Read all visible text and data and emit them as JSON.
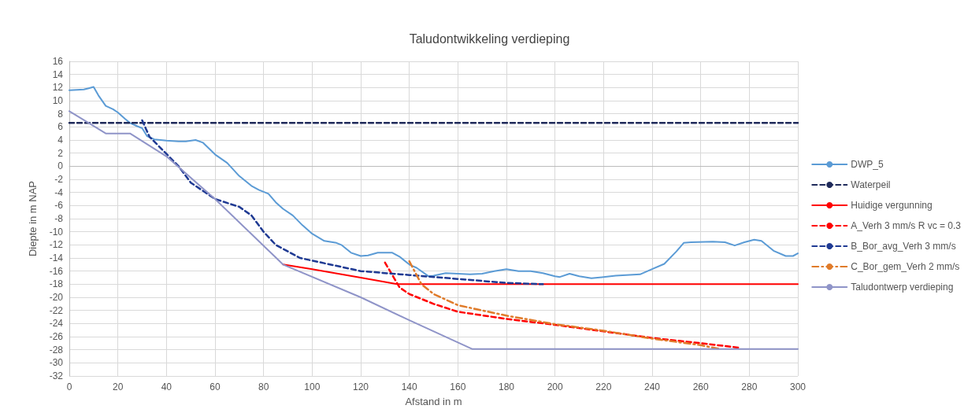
{
  "chart_data": {
    "type": "line",
    "title": "Taludontwikkeling verdieping",
    "xlabel": "Afstand in m",
    "ylabel": "Diepte in m NAP",
    "xlim": [
      0,
      300
    ],
    "xticks": [
      0,
      20,
      40,
      60,
      80,
      100,
      120,
      140,
      160,
      180,
      200,
      220,
      240,
      260,
      280,
      300
    ],
    "ylim": [
      -32,
      16
    ],
    "yticks": [
      -32,
      -30,
      -28,
      -26,
      -24,
      -22,
      -20,
      -18,
      -16,
      -14,
      -12,
      -10,
      -8,
      -6,
      -4,
      -2,
      0,
      2,
      4,
      6,
      8,
      10,
      12,
      14,
      16
    ],
    "grid": true,
    "legend": "right",
    "marker": "none",
    "series": [
      {
        "name": "DWP_5",
        "color": "#5b9bd5",
        "line_style": "solid",
        "x": [
          0,
          6,
          8,
          10,
          12,
          15,
          18,
          20,
          23,
          25,
          28,
          30,
          32,
          35,
          40,
          45,
          48,
          52,
          55,
          60,
          65,
          70,
          75,
          78,
          82,
          85,
          88,
          92,
          96,
          100,
          105,
          110,
          112,
          116,
          120,
          123,
          127,
          130,
          133,
          136,
          140,
          143,
          148,
          150,
          155,
          160,
          165,
          170,
          175,
          180,
          185,
          190,
          195,
          200,
          202,
          206,
          210,
          215,
          220,
          225,
          235,
          240,
          245,
          250,
          253,
          256,
          265,
          270,
          274,
          278,
          282,
          285,
          290,
          295,
          298,
          300
        ],
        "values": [
          11.6,
          11.7,
          11.9,
          12.1,
          10.8,
          9.2,
          8.7,
          8.2,
          7.2,
          6.6,
          6.1,
          5.8,
          4.6,
          4.1,
          3.9,
          3.8,
          3.8,
          4,
          3.6,
          1.8,
          0.5,
          -1.5,
          -3,
          -3.6,
          -4.2,
          -5.5,
          -6.5,
          -7.5,
          -9,
          -10.3,
          -11.4,
          -11.7,
          -12,
          -13.2,
          -13.7,
          -13.6,
          -13.2,
          -13.2,
          -13.2,
          -13.8,
          -15,
          -15.5,
          -16.8,
          -16.7,
          -16.3,
          -16.4,
          -16.5,
          -16.4,
          -16,
          -15.7,
          -16,
          -16,
          -16.3,
          -16.8,
          -16.9,
          -16.4,
          -16.8,
          -17.1,
          -16.9,
          -16.7,
          -16.5,
          -15.7,
          -14.9,
          -13,
          -11.7,
          -11.6,
          -11.5,
          -11.6,
          -12.1,
          -11.6,
          -11.2,
          -11.4,
          -12.9,
          -13.7,
          -13.7,
          -13.3
        ]
      },
      {
        "name": "Waterpeil",
        "color": "#1f2a5a",
        "line_style": "dashed",
        "x": [
          0,
          300
        ],
        "values": [
          6.6,
          6.6
        ]
      },
      {
        "name": "Huidige vergunning",
        "color": "#ff0000",
        "line_style": "solid",
        "x": [
          88,
          100,
          120,
          135,
          300
        ],
        "values": [
          -15,
          -15.7,
          -17,
          -18,
          -18
        ]
      },
      {
        "name": "A_Verh 3 mm/s R vc = 0.3",
        "color": "#ff0000",
        "line_style": "dashed",
        "x": [
          130,
          136,
          140,
          150,
          160,
          180,
          200,
          220,
          240,
          260,
          276
        ],
        "values": [
          -14.7,
          -18.5,
          -19.5,
          -21,
          -22.2,
          -23.3,
          -24.2,
          -25.2,
          -26.2,
          -27,
          -27.7
        ]
      },
      {
        "name": "B_Bor_avg_Verh 3 mm/s",
        "color": "#1f3a93",
        "line_style": "dashed",
        "x": [
          30,
          33,
          45,
          50,
          60,
          70,
          75,
          80,
          85,
          95,
          120,
          140,
          160,
          180,
          195
        ],
        "values": [
          7,
          4.5,
          0,
          -2.5,
          -5,
          -6.2,
          -7.5,
          -10,
          -12,
          -14,
          -16,
          -16.6,
          -17.2,
          -17.8,
          -18
        ]
      },
      {
        "name": "C_Bor_gem_Verh 2 mm/s",
        "color": "#e07b2a",
        "line_style": "dotted",
        "x": [
          140,
          145,
          150,
          160,
          180,
          200,
          220,
          240,
          260,
          268
        ],
        "values": [
          -14.5,
          -18,
          -19.5,
          -21.2,
          -22.8,
          -24.1,
          -25.1,
          -26.3,
          -27.3,
          -27.9
        ]
      },
      {
        "name": "Taludontwerp verdieping",
        "color": "#8f94c8",
        "line_style": "solid",
        "x": [
          0,
          8,
          15,
          25,
          40,
          60,
          88,
          120,
          140,
          166,
          300
        ],
        "values": [
          8.4,
          6.6,
          5,
          5,
          1.5,
          -5,
          -15,
          -20,
          -23.5,
          -27.9,
          -27.9
        ]
      }
    ]
  }
}
